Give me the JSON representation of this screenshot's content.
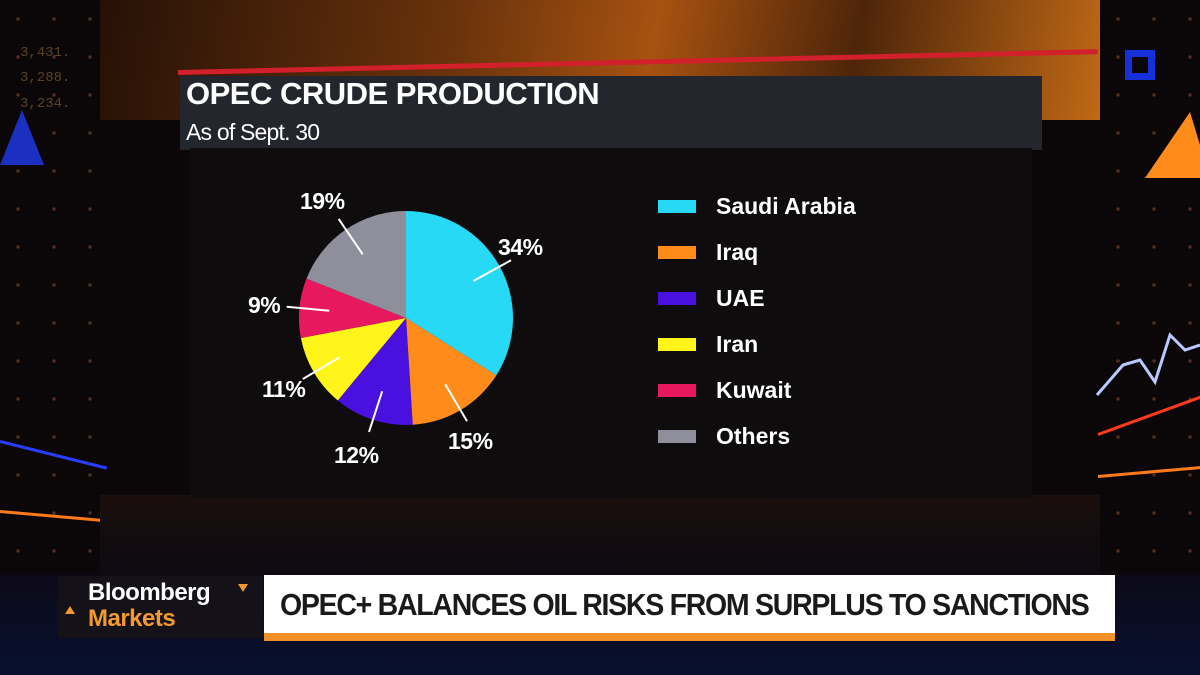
{
  "chart_data": {
    "type": "pie",
    "title": "OPEC CRUDE PRODUCTION",
    "subtitle": "As of Sept. 30",
    "categories": [
      "Saudi Arabia",
      "Iraq",
      "UAE",
      "Iran",
      "Kuwait",
      "Others"
    ],
    "values": [
      34,
      15,
      12,
      11,
      9,
      19
    ],
    "labels": [
      "34%",
      "15%",
      "12%",
      "11%",
      "9%",
      "19%"
    ],
    "colors": [
      "#27d9f5",
      "#ff8c1a",
      "#4a10e0",
      "#fff51a",
      "#e8185e",
      "#8f8f9c"
    ],
    "start_angle_deg": 0,
    "direction": "clockwise",
    "legend_position": "right",
    "unit": "%"
  },
  "legend": {
    "items": [
      {
        "label": "Saudi Arabia",
        "color": "#27d9f5"
      },
      {
        "label": "Iraq",
        "color": "#ff8c1a"
      },
      {
        "label": "UAE",
        "color": "#4a10e0"
      },
      {
        "label": "Iran",
        "color": "#fff51a"
      },
      {
        "label": "Kuwait",
        "color": "#e8185e"
      },
      {
        "label": "Others",
        "color": "#8f8f9c"
      }
    ]
  },
  "lower_third": {
    "brand_line1": "Bloomberg",
    "brand_line2": "Markets",
    "headline": "OPEC+ BALANCES OIL RISKS FROM SURPLUS TO SANCTIONS",
    "accent_color": "#f29128"
  }
}
